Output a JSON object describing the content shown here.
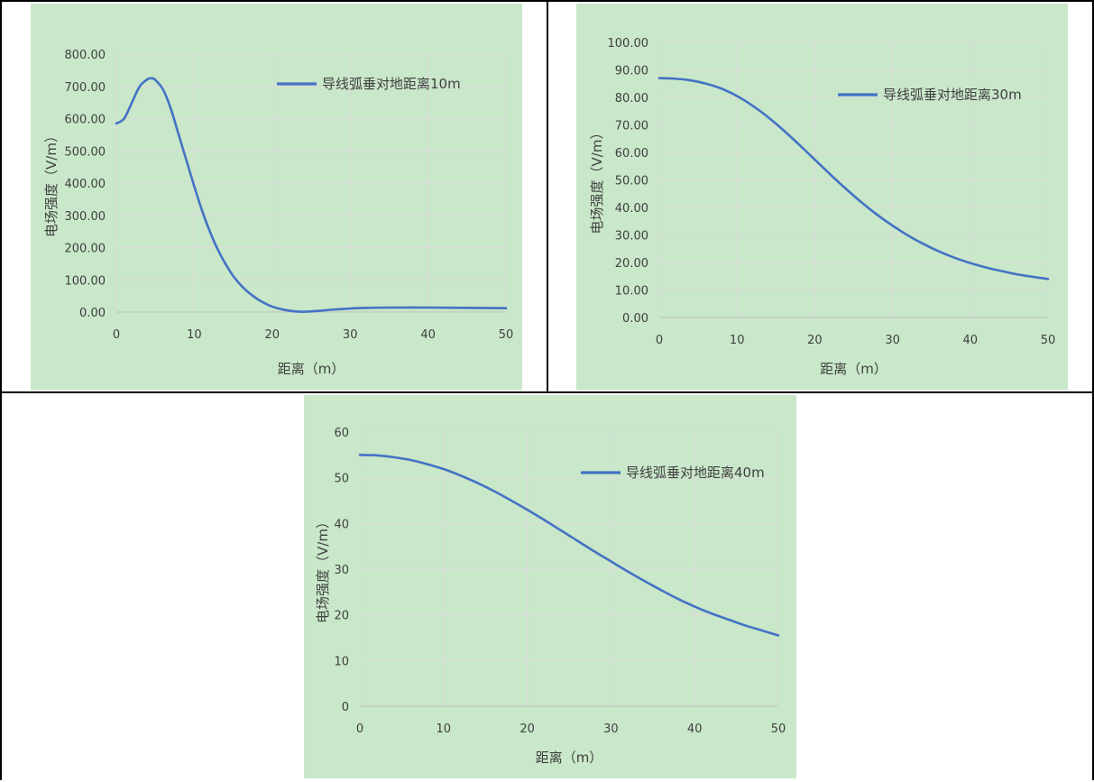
{
  "colors": {
    "plot_bg": "#c9e7c9",
    "line": "#4472c4",
    "grid": "#dcdcdc",
    "axis_text": "#404040",
    "cell_border": "#000000"
  },
  "chart_data": [
    {
      "type": "line",
      "title": "",
      "xlabel": "距离（m）",
      "ylabel": "电场强度（V/m）",
      "xlim": [
        0,
        50
      ],
      "ylim": [
        0,
        800
      ],
      "x_ticks": [
        "0",
        "10",
        "20",
        "30",
        "40",
        "50"
      ],
      "y_ticks": [
        "0.00",
        "100.00",
        "200.00",
        "300.00",
        "400.00",
        "500.00",
        "600.00",
        "700.00",
        "800.00"
      ],
      "legend_position": "top-right",
      "series": [
        {
          "name": "导线弧垂对地距离10m",
          "x": [
            0,
            1,
            2,
            3,
            4,
            4.5,
            5,
            6,
            7,
            8,
            9,
            10,
            11,
            12,
            13,
            14,
            15,
            16,
            17,
            18,
            19,
            20,
            21,
            22,
            23,
            24,
            25,
            26,
            27,
            28,
            30,
            32,
            35,
            40,
            45,
            50
          ],
          "y": [
            585,
            600,
            650,
            700,
            722,
            725,
            720,
            690,
            630,
            550,
            470,
            390,
            315,
            250,
            195,
            150,
            112,
            83,
            60,
            42,
            28,
            17,
            10,
            5,
            2,
            1,
            2,
            4,
            6,
            8,
            11,
            13,
            14,
            14,
            13,
            12
          ]
        }
      ]
    },
    {
      "type": "line",
      "title": "",
      "xlabel": "距离（m）",
      "ylabel": "电场强度（V/m）",
      "xlim": [
        0,
        50
      ],
      "ylim": [
        0,
        100
      ],
      "x_ticks": [
        "0",
        "10",
        "20",
        "30",
        "40",
        "50"
      ],
      "y_ticks": [
        "0.00",
        "10.00",
        "20.00",
        "30.00",
        "40.00",
        "50.00",
        "60.00",
        "70.00",
        "80.00",
        "90.00",
        "100.00"
      ],
      "legend_position": "top-right",
      "series": [
        {
          "name": "导线弧垂对地距离30m",
          "x": [
            0,
            2,
            4,
            6,
            8,
            10,
            12,
            14,
            16,
            18,
            20,
            22,
            24,
            26,
            28,
            30,
            32,
            34,
            36,
            38,
            40,
            42,
            44,
            46,
            48,
            50
          ],
          "y": [
            87,
            86.8,
            86.2,
            85,
            83.2,
            80.5,
            77,
            72.8,
            68,
            62.8,
            57.4,
            52,
            46.8,
            41.9,
            37.4,
            33.4,
            29.8,
            26.7,
            24,
            21.7,
            19.8,
            18.2,
            16.9,
            15.7,
            14.8,
            14
          ]
        }
      ]
    },
    {
      "type": "line",
      "title": "",
      "xlabel": "距离（m）",
      "ylabel": "电场强度（V/m）",
      "xlim": [
        0,
        50
      ],
      "ylim": [
        0,
        60
      ],
      "x_ticks": [
        "0",
        "10",
        "20",
        "30",
        "40",
        "50"
      ],
      "y_ticks": [
        "0",
        "10",
        "20",
        "30",
        "40",
        "50",
        "60"
      ],
      "legend_position": "top-right",
      "series": [
        {
          "name": "导线弧垂对地距离40m",
          "x": [
            0,
            2,
            4,
            6,
            8,
            10,
            12,
            14,
            16,
            18,
            20,
            22,
            24,
            26,
            28,
            30,
            32,
            34,
            36,
            38,
            40,
            42,
            44,
            46,
            48,
            50
          ],
          "y": [
            55,
            54.9,
            54.5,
            53.9,
            53,
            51.9,
            50.5,
            48.9,
            47.1,
            45.1,
            43,
            40.8,
            38.5,
            36.2,
            33.9,
            31.7,
            29.5,
            27.4,
            25.4,
            23.5,
            21.8,
            20.3,
            19,
            17.7,
            16.6,
            15.5
          ]
        }
      ]
    }
  ]
}
